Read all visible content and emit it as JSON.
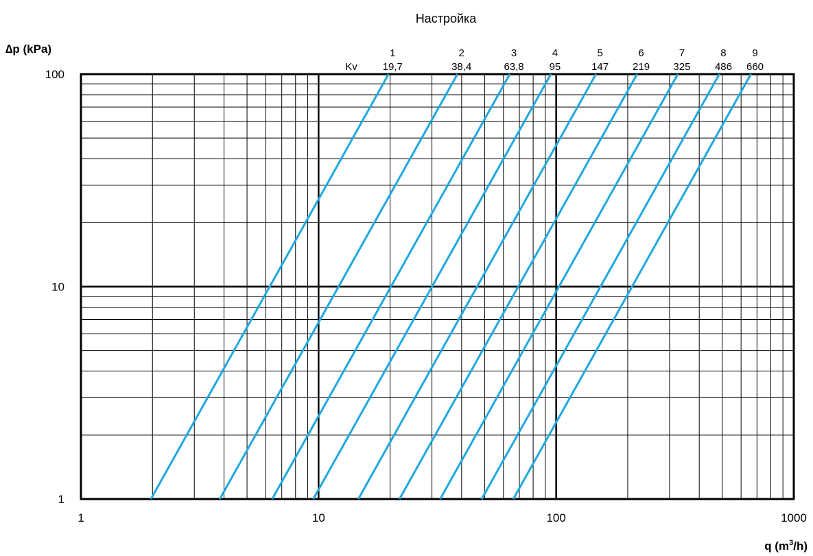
{
  "chart_data": {
    "type": "line",
    "title": "Настройка",
    "xlabel": "q (m³/h)",
    "xlabel_main": "q (m",
    "xlabel_sup": "3",
    "xlabel_end": "/h)",
    "ylabel": "∆p (kPa)",
    "x_scale": "log",
    "y_scale": "log",
    "xlim": [
      1,
      1000
    ],
    "ylim": [
      1,
      100
    ],
    "x_ticks": [
      "1",
      "10",
      "100",
      "1000"
    ],
    "y_ticks": [
      "1",
      "10",
      "100"
    ],
    "grid": true,
    "kv_label": "Kv",
    "line_color": "#1ea8e0",
    "formula": "q = Kv * sqrt(dp / 100)",
    "series": [
      {
        "setting": "1",
        "kv_label": "19,7",
        "kv": 19.7,
        "x": [
          1.97,
          19.7
        ],
        "y": [
          1,
          100
        ]
      },
      {
        "setting": "2",
        "kv_label": "38,4",
        "kv": 38.4,
        "x": [
          3.84,
          38.4
        ],
        "y": [
          1,
          100
        ]
      },
      {
        "setting": "3",
        "kv_label": "63,8",
        "kv": 63.8,
        "x": [
          6.38,
          63.8
        ],
        "y": [
          1,
          100
        ]
      },
      {
        "setting": "4",
        "kv_label": "95",
        "kv": 95,
        "x": [
          9.5,
          95
        ],
        "y": [
          1,
          100
        ]
      },
      {
        "setting": "5",
        "kv_label": "147",
        "kv": 147,
        "x": [
          14.7,
          147
        ],
        "y": [
          1,
          100
        ]
      },
      {
        "setting": "6",
        "kv_label": "219",
        "kv": 219,
        "x": [
          21.9,
          219
        ],
        "y": [
          1,
          100
        ]
      },
      {
        "setting": "7",
        "kv_label": "325",
        "kv": 325,
        "x": [
          32.5,
          325
        ],
        "y": [
          1,
          100
        ]
      },
      {
        "setting": "8",
        "kv_label": "486",
        "kv": 486,
        "x": [
          48.6,
          486
        ],
        "y": [
          1,
          100
        ]
      },
      {
        "setting": "9",
        "kv_label": "660",
        "kv": 660,
        "x": [
          66.0,
          660
        ],
        "y": [
          1,
          100
        ]
      }
    ]
  }
}
